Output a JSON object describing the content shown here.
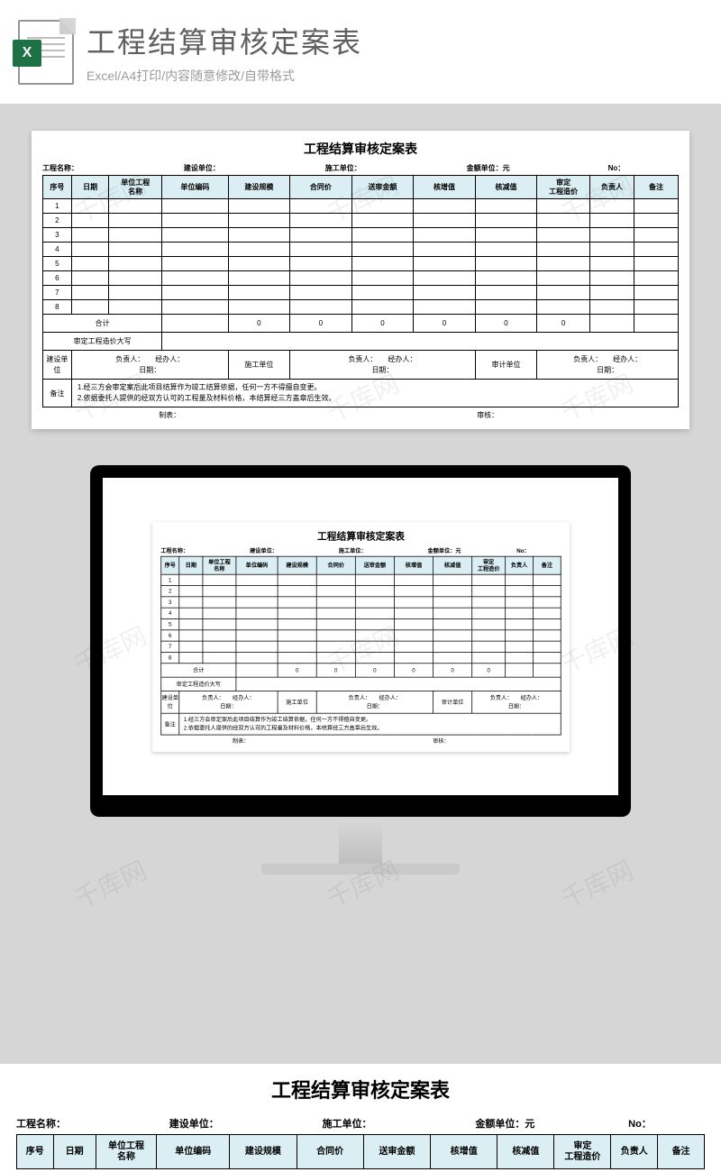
{
  "banner": {
    "title": "工程结算审核定案表",
    "subtitle": "Excel/A4打印/内容随意修改/自带格式",
    "icon_letter": "X"
  },
  "doc": {
    "title": "工程结算审核定案表",
    "meta": {
      "project_name": "工程名称：",
      "build_unit": "建设单位：",
      "construct_unit": "施工单位：",
      "amount_unit": "金额单位：元",
      "no": "No："
    },
    "columns": [
      "序号",
      "日期",
      "单位工程\n名称",
      "单位编码",
      "建设规模",
      "合同价",
      "送审金额",
      "核增值",
      "核减值",
      "审定\n工程造价",
      "负责人",
      "备注"
    ],
    "header_bg": "#daeef3",
    "row_nums": [
      "1",
      "2",
      "3",
      "4",
      "5",
      "6",
      "7",
      "8"
    ],
    "total_label": "合计",
    "total_values": [
      "0",
      "0",
      "0",
      "0",
      "0",
      "0"
    ],
    "capital_label": "审定工程造价大写",
    "sig": {
      "build": "建设单位",
      "construct": "施工单位",
      "audit": "审计单位",
      "line": "负责人：　　经办人：",
      "date": "日期："
    },
    "remarks_label": "备注",
    "remarks_text1": "1.经三方会审定案后此项目结算作为竣工结算依据，任何一方不得擅自变更。",
    "remarks_text2": "2.依据委托人提供的经双方认可的工程量及材料价格，本结算经三方盖章后生效。",
    "footer_make": "制表：",
    "footer_check": "审核："
  },
  "watermark": "千库网"
}
